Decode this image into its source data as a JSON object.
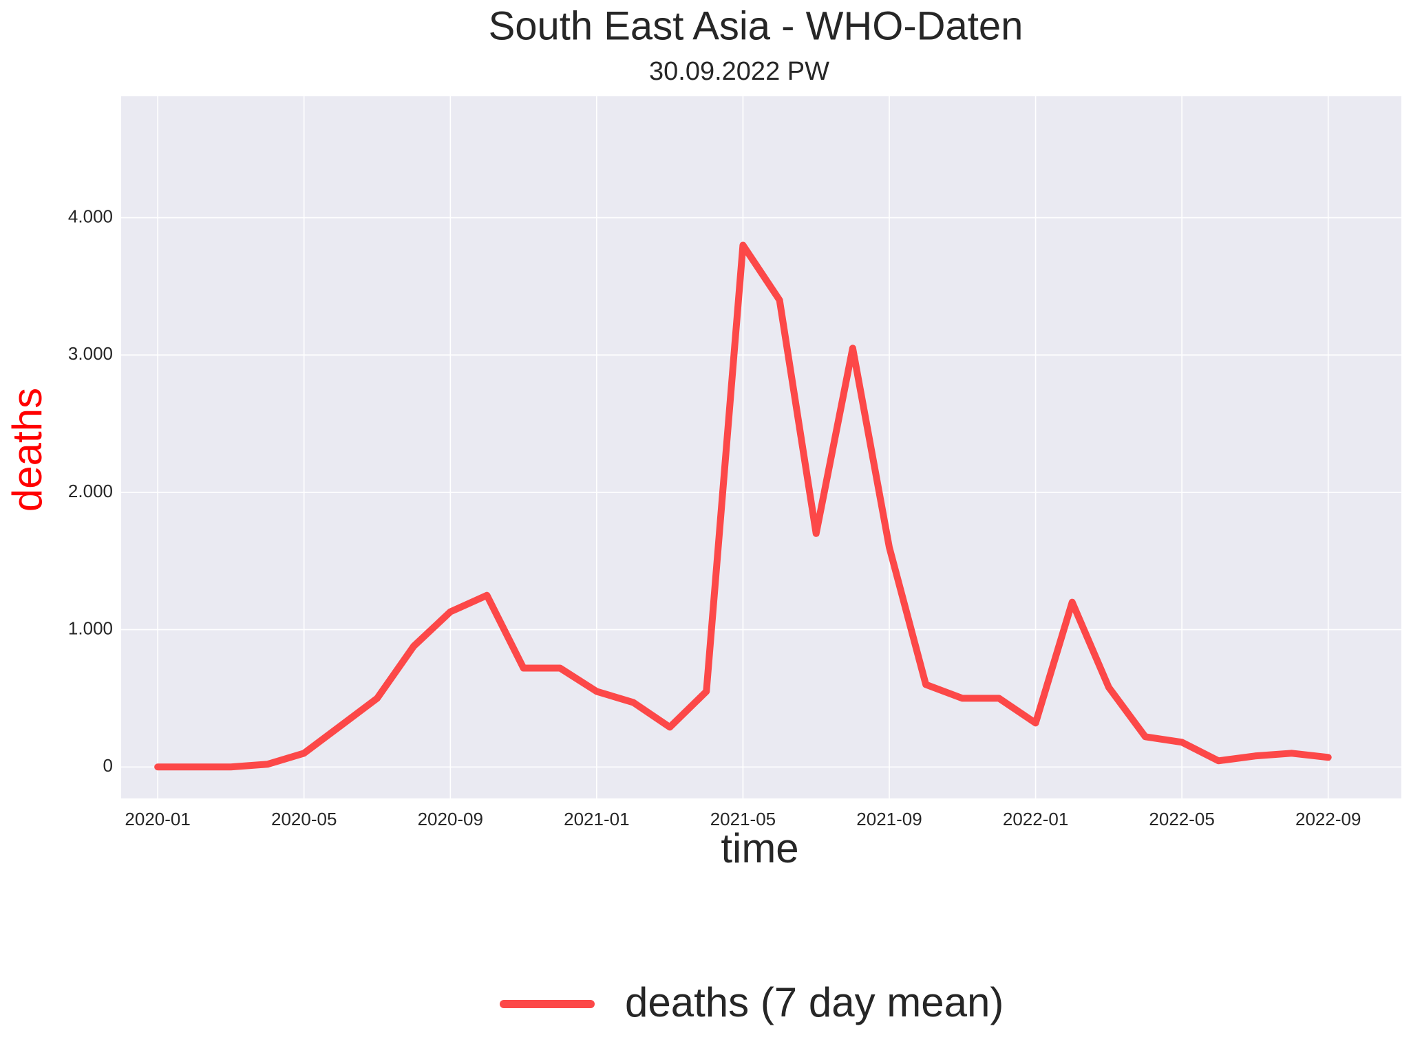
{
  "chart_data": {
    "type": "line",
    "title": "South East Asia - WHO-Daten",
    "subtitle": "30.09.2022 PW",
    "xlabel": "time",
    "ylabel": "deaths",
    "x": [
      "2020-01",
      "2020-02",
      "2020-03",
      "2020-04",
      "2020-05",
      "2020-06",
      "2020-07",
      "2020-08",
      "2020-09",
      "2020-10",
      "2020-11",
      "2020-12",
      "2021-01",
      "2021-02",
      "2021-03",
      "2021-04",
      "2021-05",
      "2021-06",
      "2021-07",
      "2021-08",
      "2021-09",
      "2021-10",
      "2021-11",
      "2021-12",
      "2022-01",
      "2022-02",
      "2022-03",
      "2022-04",
      "2022-05",
      "2022-06",
      "2022-07",
      "2022-08",
      "2022-09"
    ],
    "series": [
      {
        "name": "deaths (7 day mean)",
        "color": "#fc4848",
        "values": [
          0,
          0,
          0,
          20,
          100,
          300,
          500,
          880,
          1130,
          1250,
          720,
          720,
          550,
          470,
          290,
          550,
          3800,
          3400,
          1700,
          3050,
          1600,
          600,
          500,
          500,
          320,
          1200,
          580,
          220,
          180,
          45,
          80,
          100,
          70
        ]
      }
    ],
    "xlim": [
      "2019-12",
      "2022-11"
    ],
    "xticks": [
      "2020-01",
      "2020-05",
      "2020-09",
      "2021-01",
      "2021-05",
      "2021-09",
      "2022-01",
      "2022-05",
      "2022-09"
    ],
    "ylim": [
      -229,
      4884
    ],
    "yticks": [
      0,
      {
        "value": 1000,
        "label": "1.000"
      },
      {
        "value": 2000,
        "label": "2.000"
      },
      {
        "value": 3000,
        "label": "3.000"
      },
      {
        "value": 4000,
        "label": "4.000"
      }
    ],
    "grid": true,
    "legend": "bottom"
  }
}
